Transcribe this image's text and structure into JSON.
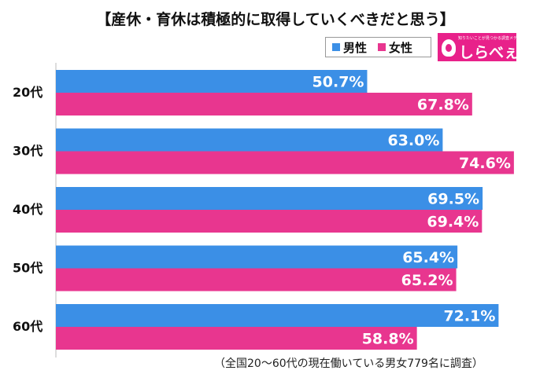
{
  "title": "【産休・育休は積極的に取得していくべきだと思う】",
  "legend": [
    {
      "label": "男性",
      "color": "#3b8fe6"
    },
    {
      "label": "女性",
      "color": "#e8368f"
    }
  ],
  "logo": {
    "tagline": "知りたいことが見つかる調査メディア",
    "name": "しらべぇ"
  },
  "footnote": "（全国20〜60代の現在働いている男女779名に調査）",
  "chart_data": {
    "type": "bar",
    "orientation": "horizontal",
    "title": "【産休・育休は積極的に取得していくべきだと思う】",
    "categories": [
      "20代",
      "30代",
      "40代",
      "50代",
      "60代"
    ],
    "series": [
      {
        "name": "男性",
        "color": "#3b8fe6",
        "values": [
          50.7,
          63.0,
          69.5,
          65.4,
          72.1
        ],
        "labels": [
          "50.7%",
          "63.0%",
          "69.5%",
          "65.4%",
          "72.1%"
        ]
      },
      {
        "name": "女性",
        "color": "#e8368f",
        "values": [
          67.8,
          74.6,
          69.4,
          65.2,
          58.8
        ],
        "labels": [
          "67.8%",
          "74.6%",
          "69.4%",
          "65.2%",
          "58.8%"
        ]
      }
    ],
    "xlim": [
      0,
      80
    ],
    "grid": false,
    "legend_position": "top-right"
  }
}
